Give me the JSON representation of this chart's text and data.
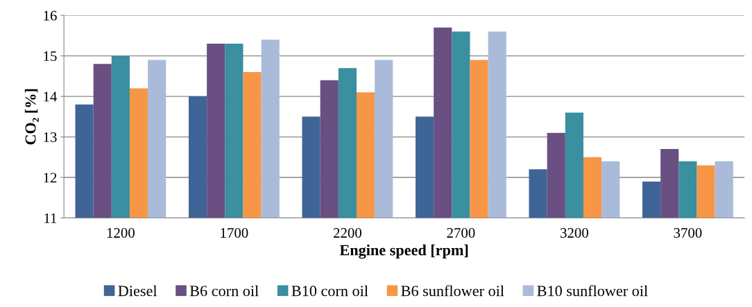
{
  "chart_data": {
    "type": "bar",
    "xlabel": "Engine speed [rpm]",
    "ylabel": "CO₂ [%]",
    "categories": [
      "1200",
      "1700",
      "2200",
      "2700",
      "3200",
      "3700"
    ],
    "series": [
      {
        "name": "Diesel",
        "color": "#3f6598",
        "values": [
          13.8,
          14.0,
          13.5,
          13.5,
          12.2,
          11.9
        ]
      },
      {
        "name": "B6 corn oil",
        "color": "#6a4f82",
        "values": [
          14.8,
          15.3,
          14.4,
          15.7,
          13.1,
          12.7
        ]
      },
      {
        "name": "B10 corn oil",
        "color": "#3a8fa0",
        "values": [
          15.0,
          15.3,
          14.7,
          15.6,
          13.6,
          12.4
        ]
      },
      {
        "name": "B6 sunflower oil",
        "color": "#f79646",
        "values": [
          14.2,
          14.6,
          14.1,
          14.9,
          12.5,
          12.3
        ]
      },
      {
        "name": "B10 sunflower oil",
        "color": "#a9bbd9",
        "values": [
          14.9,
          15.4,
          14.9,
          15.6,
          12.4,
          12.4
        ]
      }
    ],
    "ylim": [
      11,
      16
    ],
    "yticks": [
      11,
      12,
      13,
      14,
      15,
      16
    ],
    "grid": "y",
    "legend": "bottom"
  }
}
